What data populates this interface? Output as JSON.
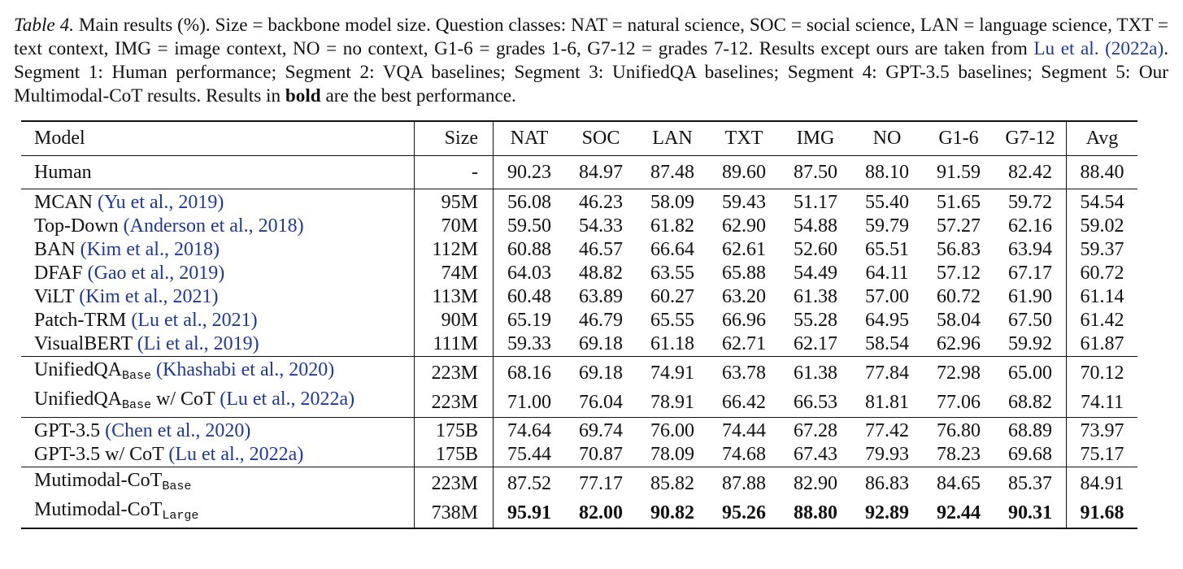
{
  "caption": {
    "label": "Table 4.",
    "text_1": " Main results (%). Size = backbone model size. Question classes: NAT = natural science, SOC = social science, LAN = language science, TXT = text context, IMG = image context, NO = no context, G1-6 = grades 1-6, G7-12 = grades 7-12. Results except ours are taken from ",
    "cite": "Lu et al. (2022a)",
    "text_2": ". Segment 1: Human performance; Segment 2: VQA baselines; Segment 3: UnifiedQA baselines; Segment 4: GPT-3.5 baselines; Segment 5: Our Multimodal-CoT results. Results in ",
    "bold": "bold",
    "text_3": " are the best performance."
  },
  "columns": [
    "Model",
    "Size",
    "NAT",
    "SOC",
    "LAN",
    "TXT",
    "IMG",
    "NO",
    "G1-6",
    "G7-12",
    "Avg"
  ],
  "rows": {
    "human": {
      "name": "Human",
      "size": "-",
      "vals": [
        "90.23",
        "84.97",
        "87.48",
        "89.60",
        "87.50",
        "88.10",
        "91.59",
        "82.42",
        "88.40"
      ]
    },
    "mcan": {
      "name": "MCAN",
      "cite": "(Yu et al., 2019)",
      "size": "95M",
      "vals": [
        "56.08",
        "46.23",
        "58.09",
        "59.43",
        "51.17",
        "55.40",
        "51.65",
        "59.72",
        "54.54"
      ]
    },
    "topdown": {
      "name": "Top-Down",
      "cite": "(Anderson et al., 2018)",
      "size": "70M",
      "vals": [
        "59.50",
        "54.33",
        "61.82",
        "62.90",
        "54.88",
        "59.79",
        "57.27",
        "62.16",
        "59.02"
      ]
    },
    "ban": {
      "name": "BAN",
      "cite": "(Kim et al., 2018)",
      "size": "112M",
      "vals": [
        "60.88",
        "46.57",
        "66.64",
        "62.61",
        "52.60",
        "65.51",
        "56.83",
        "63.94",
        "59.37"
      ]
    },
    "dfaf": {
      "name": "DFAF",
      "cite": "(Gao et al., 2019)",
      "size": "74M",
      "vals": [
        "64.03",
        "48.82",
        "63.55",
        "65.88",
        "54.49",
        "64.11",
        "57.12",
        "67.17",
        "60.72"
      ]
    },
    "vilt": {
      "name": "ViLT",
      "cite": "(Kim et al., 2021)",
      "size": "113M",
      "vals": [
        "60.48",
        "63.89",
        "60.27",
        "63.20",
        "61.38",
        "57.00",
        "60.72",
        "61.90",
        "61.14"
      ]
    },
    "patchtrm": {
      "name": "Patch-TRM",
      "cite": "(Lu et al., 2021)",
      "size": "90M",
      "vals": [
        "65.19",
        "46.79",
        "65.55",
        "66.96",
        "55.28",
        "64.95",
        "58.04",
        "67.50",
        "61.42"
      ]
    },
    "visualbert": {
      "name": "VisualBERT",
      "cite": "(Li et al., 2019)",
      "size": "111M",
      "vals": [
        "59.33",
        "69.18",
        "61.18",
        "62.71",
        "62.17",
        "58.54",
        "62.96",
        "59.92",
        "61.87"
      ]
    },
    "uqa": {
      "name": "UnifiedQA",
      "sub": "Base",
      "cite": "(Khashabi et al., 2020)",
      "size": "223M",
      "vals": [
        "68.16",
        "69.18",
        "74.91",
        "63.78",
        "61.38",
        "77.84",
        "72.98",
        "65.00",
        "70.12"
      ]
    },
    "uqacot": {
      "name": "UnifiedQA",
      "sub": "Base",
      "suffix": " w/ CoT",
      "cite": "(Lu et al., 2022a)",
      "size": "223M",
      "vals": [
        "71.00",
        "76.04",
        "78.91",
        "66.42",
        "66.53",
        "81.81",
        "77.06",
        "68.82",
        "74.11"
      ]
    },
    "gpt": {
      "name": "GPT-3.5",
      "cite": "(Chen et al., 2020)",
      "size": "175B",
      "vals": [
        "74.64",
        "69.74",
        "76.00",
        "74.44",
        "67.28",
        "77.42",
        "76.80",
        "68.89",
        "73.97"
      ]
    },
    "gptcot": {
      "name": "GPT-3.5 w/ CoT",
      "cite": "(Lu et al., 2022a)",
      "size": "175B",
      "vals": [
        "75.44",
        "70.87",
        "78.09",
        "74.68",
        "67.43",
        "79.93",
        "78.23",
        "69.68",
        "75.17"
      ]
    },
    "mmbase": {
      "name": "Mutimodal-CoT",
      "sub": "Base",
      "size": "223M",
      "vals": [
        "87.52",
        "77.17",
        "85.82",
        "87.88",
        "82.90",
        "86.83",
        "84.65",
        "85.37",
        "84.91"
      ]
    },
    "mmlarge": {
      "name": "Mutimodal-CoT",
      "sub": "Large",
      "size": "738M",
      "vals": [
        "95.91",
        "82.00",
        "90.82",
        "95.26",
        "88.80",
        "92.89",
        "92.44",
        "90.31",
        "91.68"
      ]
    }
  }
}
